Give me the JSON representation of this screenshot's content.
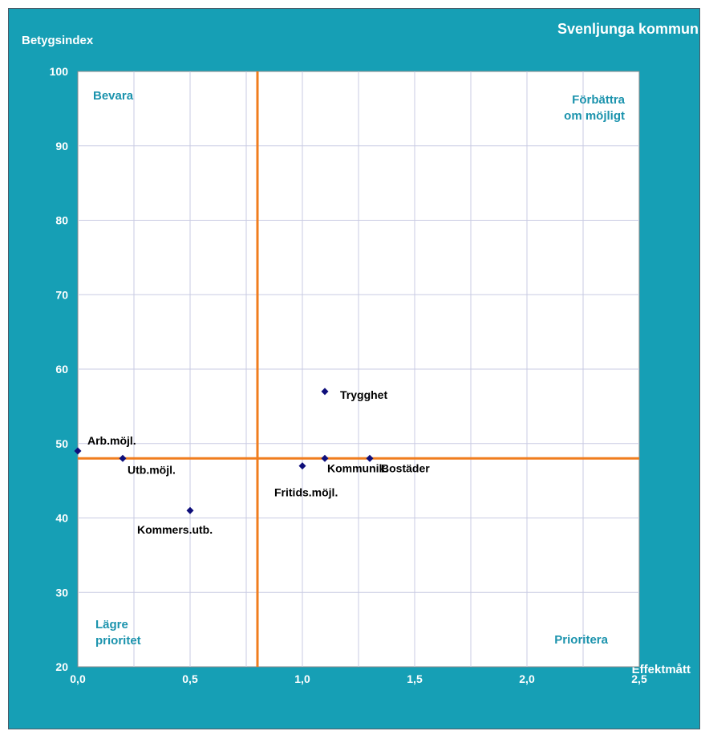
{
  "chart_title": "Svenljunga kommun",
  "chart_data": {
    "type": "scatter",
    "title": "Svenljunga kommun",
    "xlabel": "Effektmått",
    "ylabel": "Betygsindex",
    "xlim": [
      0,
      2.5
    ],
    "ylim": [
      20,
      100
    ],
    "x_ticks": [
      "0,0",
      "0,5",
      "1,0",
      "1,5",
      "2,0",
      "2,5"
    ],
    "y_ticks": [
      "20",
      "30",
      "40",
      "50",
      "60",
      "70",
      "80",
      "90",
      "100"
    ],
    "grid": true,
    "points": [
      {
        "label": "Arb.möjl.",
        "x": 0.0,
        "y": 49
      },
      {
        "label": "Utb.möjl.",
        "x": 0.2,
        "y": 48
      },
      {
        "label": "Kommers.utb.",
        "x": 0.5,
        "y": 41
      },
      {
        "label": "Fritids.möjl.",
        "x": 1.0,
        "y": 47
      },
      {
        "label": "Kommunik.",
        "x": 1.1,
        "y": 48
      },
      {
        "label": "Bostäder",
        "x": 1.3,
        "y": 48
      },
      {
        "label": "Trygghet",
        "x": 1.1,
        "y": 57
      }
    ],
    "reference_lines": {
      "x": 0.8,
      "y": 48
    },
    "quadrants": {
      "top_left": "Bevara",
      "top_right": [
        "Förbättra",
        "om möjligt"
      ],
      "bottom_left": [
        "Lägre",
        "prioritet"
      ],
      "bottom_right": "Prioritera"
    },
    "colors": {
      "background": "#169fb5",
      "plot_area": "#ffffff",
      "grid": "#c9cbe3",
      "reference_line": "#f07d1e",
      "marker": "#0e0e7a",
      "quadrant_label": "#1b93ad",
      "axis_text": "#ffffff",
      "point_label": "#000000"
    }
  }
}
